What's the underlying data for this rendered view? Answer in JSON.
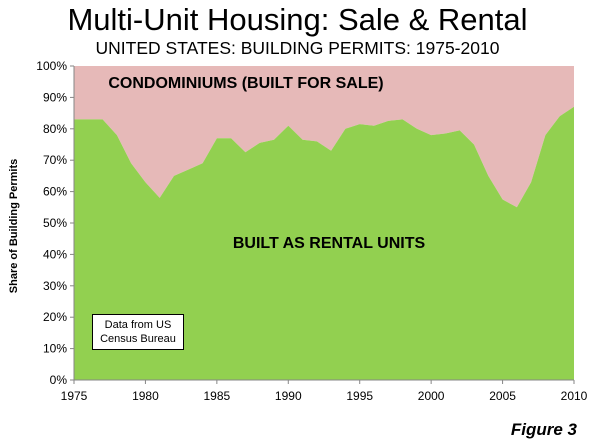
{
  "header": {
    "title": "Multi-Unit Housing: Sale & Rental",
    "subtitle": "UNITED STATES: BUILDING PERMITS: 1975-2010"
  },
  "note": {
    "line1": "Data from US",
    "line2": "Census Bureau"
  },
  "figure_label": "Figure 3",
  "colors": {
    "rental": "#92d050",
    "condo": "#e6b9b8",
    "plot_bg": "#ffffff"
  },
  "chart_data": {
    "type": "area",
    "title": "Multi-Unit Housing: Sale & Rental",
    "subtitle": "UNITED STATES: BUILDING PERMITS: 1975-2010",
    "ylabel": "Share of Building Permits",
    "xlabel": "",
    "ylim": [
      0,
      100
    ],
    "xlim": [
      1975,
      2010
    ],
    "stacked": true,
    "x_ticks": [
      "1975",
      "1980",
      "1985",
      "1990",
      "1995",
      "2000",
      "2005",
      "2010"
    ],
    "y_ticks": [
      "0%",
      "10%",
      "20%",
      "30%",
      "40%",
      "50%",
      "60%",
      "70%",
      "80%",
      "90%",
      "100%"
    ],
    "x": [
      1975,
      1976,
      1977,
      1978,
      1979,
      1980,
      1981,
      1982,
      1983,
      1984,
      1985,
      1986,
      1987,
      1988,
      1989,
      1990,
      1991,
      1992,
      1993,
      1994,
      1995,
      1996,
      1997,
      1998,
      1999,
      2000,
      2001,
      2002,
      2003,
      2004,
      2005,
      2006,
      2007,
      2008,
      2009,
      2010
    ],
    "series": [
      {
        "name": "BUILT AS RENTAL UNITS",
        "values": [
          83,
          83,
          83,
          78,
          69,
          63,
          58,
          65,
          67,
          69,
          77,
          77,
          72.5,
          75.5,
          76.5,
          81,
          76.5,
          76,
          73,
          80,
          81.5,
          81,
          82.5,
          83,
          80,
          78,
          78.5,
          79.5,
          75,
          65,
          57.5,
          55,
          63,
          78,
          84,
          87
        ]
      },
      {
        "name": "CONDOMINIUMS (BUILT FOR SALE)",
        "values": [
          17,
          17,
          17,
          22,
          31,
          37,
          42,
          35,
          33,
          31,
          23,
          23,
          27.5,
          24.5,
          23.5,
          19,
          23.5,
          24,
          27,
          20,
          18.5,
          19,
          17.5,
          17,
          20,
          22,
          21.5,
          20.5,
          25,
          35,
          42.5,
          45,
          37,
          22,
          16,
          13
        ]
      }
    ],
    "grid": false,
    "legend": "none"
  }
}
